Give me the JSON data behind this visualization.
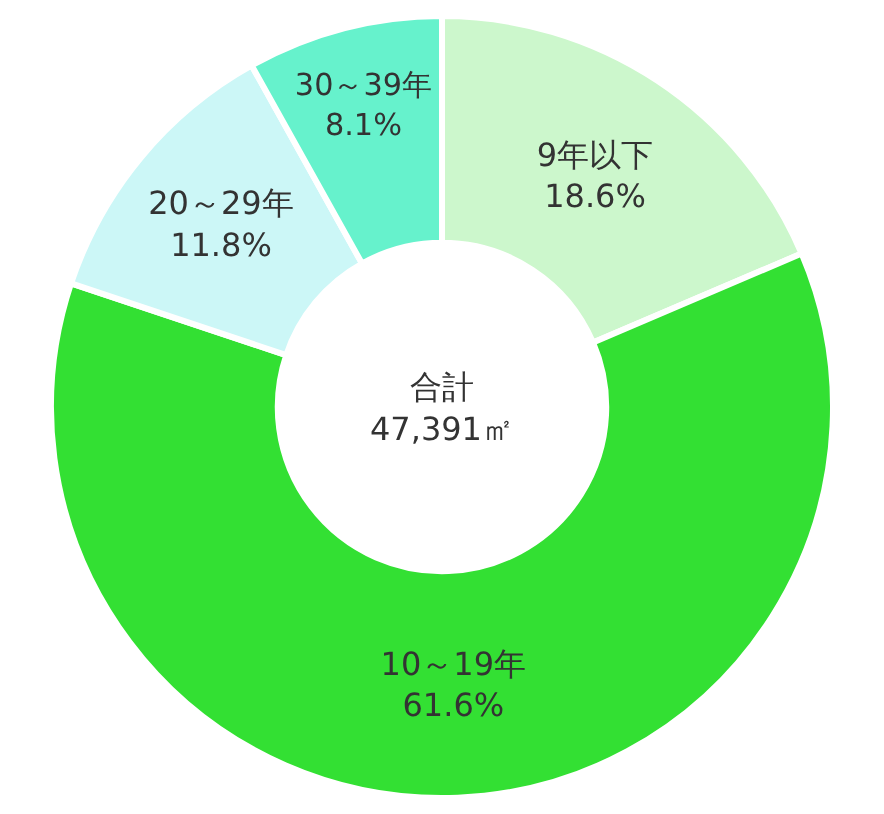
{
  "chart_data": {
    "type": "donut",
    "categories": [
      "9年以下",
      "10～19年",
      "20～29年",
      "30～39年"
    ],
    "values": [
      18.6,
      61.6,
      11.8,
      8.1
    ],
    "value_labels": [
      "18.6%",
      "61.6%",
      "11.8%",
      "8.1%"
    ],
    "colors": [
      "#ccf7cc",
      "#33e033",
      "#ccf7f7",
      "#66f2cc"
    ],
    "annotations": [
      "合計\n47,391㎡"
    ],
    "legend": false
  }
}
